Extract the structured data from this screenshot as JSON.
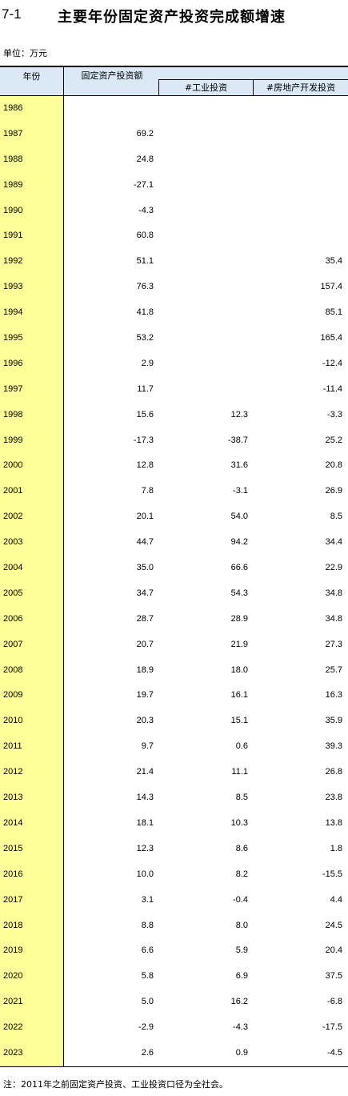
{
  "title": {
    "number": "7-1",
    "text": "主要年份固定资产投资完成额增速"
  },
  "unit": "单位：万元",
  "headers": {
    "year": "年份",
    "fixed": "固定资产投资额",
    "industry": "#工业投资",
    "realestate": "#房地产开发投资"
  },
  "rows": [
    {
      "year": "1986",
      "fixed": "",
      "industry": "",
      "realestate": ""
    },
    {
      "year": "1987",
      "fixed": "69.2",
      "industry": "",
      "realestate": ""
    },
    {
      "year": "1988",
      "fixed": "24.8",
      "industry": "",
      "realestate": ""
    },
    {
      "year": "1989",
      "fixed": "-27.1",
      "industry": "",
      "realestate": ""
    },
    {
      "year": "1990",
      "fixed": "-4.3",
      "industry": "",
      "realestate": ""
    },
    {
      "year": "1991",
      "fixed": "60.8",
      "industry": "",
      "realestate": ""
    },
    {
      "year": "1992",
      "fixed": "51.1",
      "industry": "",
      "realestate": "35.4"
    },
    {
      "year": "1993",
      "fixed": "76.3",
      "industry": "",
      "realestate": "157.4"
    },
    {
      "year": "1994",
      "fixed": "41.8",
      "industry": "",
      "realestate": "85.1"
    },
    {
      "year": "1995",
      "fixed": "53.2",
      "industry": "",
      "realestate": "165.4"
    },
    {
      "year": "1996",
      "fixed": "2.9",
      "industry": "",
      "realestate": "-12.4"
    },
    {
      "year": "1997",
      "fixed": "11.7",
      "industry": "",
      "realestate": "-11.4"
    },
    {
      "year": "1998",
      "fixed": "15.6",
      "industry": "12.3",
      "realestate": "-3.3"
    },
    {
      "year": "1999",
      "fixed": "-17.3",
      "industry": "-38.7",
      "realestate": "25.2"
    },
    {
      "year": "2000",
      "fixed": "12.8",
      "industry": "31.6",
      "realestate": "20.8"
    },
    {
      "year": "2001",
      "fixed": "7.8",
      "industry": "-3.1",
      "realestate": "26.9"
    },
    {
      "year": "2002",
      "fixed": "20.1",
      "industry": "54.0",
      "realestate": "8.5"
    },
    {
      "year": "2003",
      "fixed": "44.7",
      "industry": "94.2",
      "realestate": "34.4"
    },
    {
      "year": "2004",
      "fixed": "35.0",
      "industry": "66.6",
      "realestate": "22.9"
    },
    {
      "year": "2005",
      "fixed": "34.7",
      "industry": "54.3",
      "realestate": "34.8"
    },
    {
      "year": "2006",
      "fixed": "28.7",
      "industry": "28.9",
      "realestate": "34.8"
    },
    {
      "year": "2007",
      "fixed": "20.7",
      "industry": "21.9",
      "realestate": "27.3"
    },
    {
      "year": "2008",
      "fixed": "18.9",
      "industry": "18.0",
      "realestate": "25.7"
    },
    {
      "year": "2009",
      "fixed": "19.7",
      "industry": "16.1",
      "realestate": "16.3"
    },
    {
      "year": "2010",
      "fixed": "20.3",
      "industry": "15.1",
      "realestate": "35.9"
    },
    {
      "year": "2011",
      "fixed": "9.7",
      "industry": "0.6",
      "realestate": "39.3"
    },
    {
      "year": "2012",
      "fixed": "21.4",
      "industry": "11.1",
      "realestate": "26.8"
    },
    {
      "year": "2013",
      "fixed": "14.3",
      "industry": "8.5",
      "realestate": "23.8"
    },
    {
      "year": "2014",
      "fixed": "18.1",
      "industry": "10.3",
      "realestate": "13.8"
    },
    {
      "year": "2015",
      "fixed": "12.3",
      "industry": "8.6",
      "realestate": "1.8"
    },
    {
      "year": "2016",
      "fixed": "10.0",
      "industry": "8.2",
      "realestate": "-15.5"
    },
    {
      "year": "2017",
      "fixed": "3.1",
      "industry": "-0.4",
      "realestate": "4.4"
    },
    {
      "year": "2018",
      "fixed": "8.8",
      "industry": "8.0",
      "realestate": "24.5"
    },
    {
      "year": "2019",
      "fixed": "6.6",
      "industry": "5.9",
      "realestate": "20.4"
    },
    {
      "year": "2020",
      "fixed": "5.8",
      "industry": "6.9",
      "realestate": "37.5"
    },
    {
      "year": "2021",
      "fixed": "5.0",
      "industry": "16.2",
      "realestate": "-6.8"
    },
    {
      "year": "2022",
      "fixed": "-2.9",
      "industry": "-4.3",
      "realestate": "-17.5"
    },
    {
      "year": "2023",
      "fixed": "2.6",
      "industry": "0.9",
      "realestate": "-4.5"
    }
  ],
  "note": "注：2011年之前固定资产投资、工业投资口径为全社会。",
  "colors": {
    "header_bg": "#dbe9f6",
    "year_column_bg": "#ffff99"
  }
}
